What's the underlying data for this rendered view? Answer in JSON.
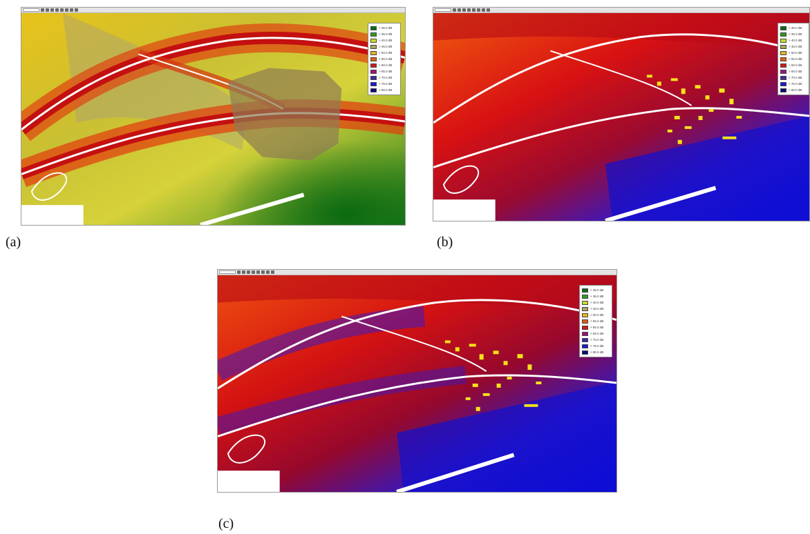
{
  "panels": [
    {
      "id": "a",
      "caption": "(a)",
      "background": "#fff300"
    },
    {
      "id": "b",
      "caption": "(b)",
      "background": "#e41500"
    },
    {
      "id": "c",
      "caption": "(c)",
      "background": "#e41500"
    }
  ],
  "legend": [
    {
      "label": "< 35.0 dB",
      "color": "#0a6e12"
    },
    {
      "label": "> 35.0 dB",
      "color": "#2f9a22"
    },
    {
      "label": "> 40.0 dB",
      "color": "#c8de2c"
    },
    {
      "label": "> 45.0 dB",
      "color": "#a9a35f"
    },
    {
      "label": "> 50.0 dB",
      "color": "#e9b520"
    },
    {
      "label": "> 55.0 dB",
      "color": "#e35d12"
    },
    {
      "label": "> 60.0 dB",
      "color": "#d41818"
    },
    {
      "label": "> 65.0 dB",
      "color": "#a0127a"
    },
    {
      "label": "> 70.0 dB",
      "color": "#3d2aa0"
    },
    {
      "label": "> 75.0 dB",
      "color": "#1a1ad0"
    },
    {
      "label": "> 80.0 dB",
      "color": "#0a0a80"
    }
  ],
  "icons": {
    "toolbar_icons": [
      "select-tool-icon",
      "zoom-in-icon",
      "zoom-out-icon",
      "pan-icon",
      "print-icon",
      "save-icon",
      "layer-icon",
      "grid-icon",
      "measure-icon",
      "help-icon"
    ]
  }
}
